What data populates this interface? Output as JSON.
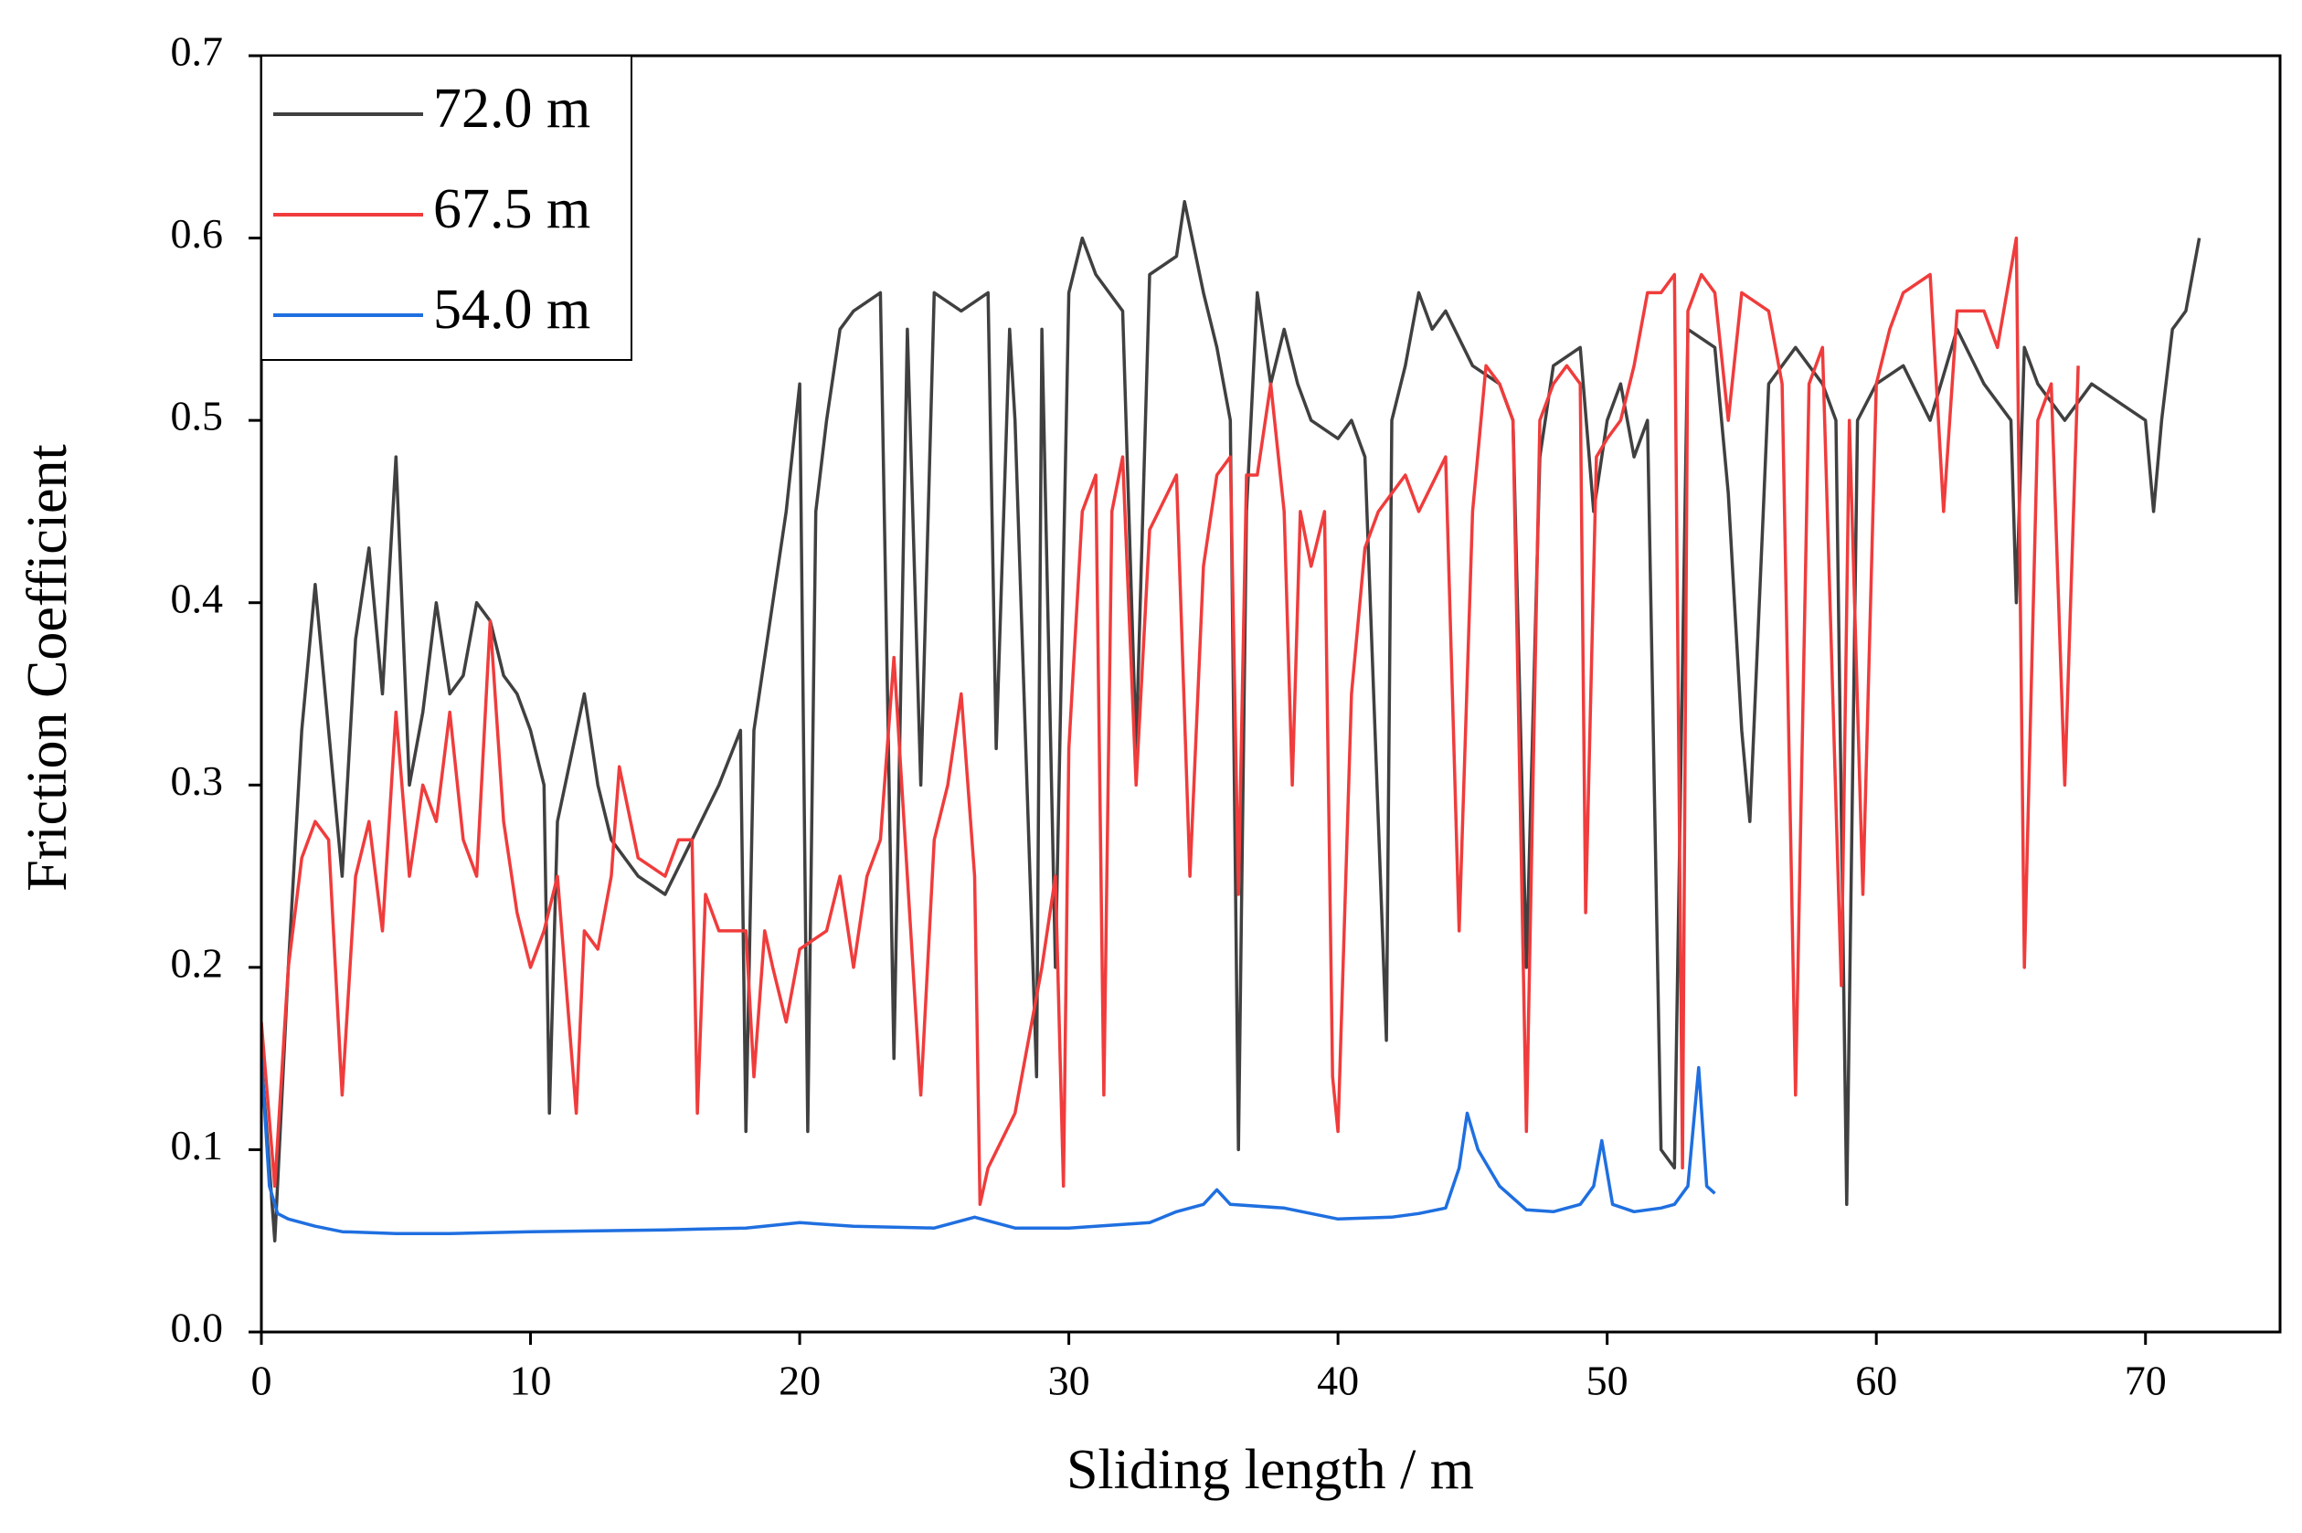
{
  "chart_data": {
    "type": "line",
    "x_label": "Sliding length / m",
    "y_label": "Friction Coefficient",
    "xlim": [
      0,
      75
    ],
    "ylim": [
      0,
      0.7
    ],
    "xticks": [
      0,
      10,
      20,
      30,
      40,
      50,
      60,
      70
    ],
    "yticks": [
      {
        "value": 0,
        "label": "0.0"
      },
      0.1,
      0.2,
      0.3,
      0.4,
      0.5,
      0.6,
      0.7
    ],
    "legend": "upper-left",
    "series": [
      {
        "name": "72.0 m",
        "color": "#404040",
        "x": [
          0,
          0.5,
          1,
          1.5,
          2,
          2.5,
          3,
          3.5,
          4,
          4.5,
          5,
          5.5,
          6,
          6.5,
          7,
          7.5,
          8,
          8.5,
          9,
          9.5,
          10,
          10.5,
          10.7,
          11,
          12,
          12.5,
          13,
          14,
          15,
          16,
          17,
          17.8,
          18,
          18.3,
          19,
          19.5,
          20,
          20.3,
          20.6,
          21,
          21.5,
          22,
          23,
          23.5,
          24,
          24.5,
          25,
          26,
          27,
          27.3,
          27.8,
          28,
          28.8,
          29,
          29.5,
          30,
          30.5,
          31,
          32,
          32.5,
          33,
          34,
          34.3,
          35,
          35.5,
          36,
          36.3,
          36.6,
          37,
          37.5,
          38,
          38.5,
          39,
          40,
          40.5,
          41,
          41.8,
          42,
          42.5,
          43,
          43.5,
          44,
          45,
          46,
          46.5,
          47,
          47.5,
          48,
          49,
          49.5,
          50,
          50.5,
          51,
          51.5,
          52,
          52.5,
          53,
          54,
          54.5,
          55,
          55.3,
          55.8,
          56,
          57,
          58,
          58.5,
          58.9,
          59.3,
          60,
          61,
          62,
          63,
          64,
          65,
          65.2,
          65.5,
          66,
          67,
          68,
          69,
          70,
          70.3,
          70.6,
          71,
          71.5,
          72
        ],
        "values": [
          0.15,
          0.05,
          0.2,
          0.33,
          0.41,
          0.33,
          0.25,
          0.38,
          0.43,
          0.35,
          0.48,
          0.3,
          0.34,
          0.4,
          0.35,
          0.36,
          0.4,
          0.39,
          0.36,
          0.35,
          0.33,
          0.3,
          0.12,
          0.28,
          0.35,
          0.3,
          0.27,
          0.25,
          0.24,
          0.27,
          0.3,
          0.33,
          0.11,
          0.33,
          0.4,
          0.45,
          0.52,
          0.11,
          0.45,
          0.5,
          0.55,
          0.56,
          0.57,
          0.15,
          0.55,
          0.3,
          0.57,
          0.56,
          0.57,
          0.32,
          0.55,
          0.5,
          0.14,
          0.55,
          0.2,
          0.57,
          0.6,
          0.58,
          0.56,
          0.32,
          0.58,
          0.59,
          0.62,
          0.57,
          0.54,
          0.5,
          0.1,
          0.45,
          0.57,
          0.52,
          0.55,
          0.52,
          0.5,
          0.49,
          0.5,
          0.48,
          0.16,
          0.5,
          0.53,
          0.57,
          0.55,
          0.56,
          0.53,
          0.52,
          0.5,
          0.2,
          0.48,
          0.53,
          0.54,
          0.45,
          0.5,
          0.52,
          0.48,
          0.5,
          0.1,
          0.09,
          0.55,
          0.54,
          0.46,
          0.33,
          0.28,
          0.45,
          0.52,
          0.54,
          0.52,
          0.5,
          0.07,
          0.5,
          0.52,
          0.53,
          0.5,
          0.55,
          0.52,
          0.5,
          0.4,
          0.54,
          0.52,
          0.5,
          0.52,
          0.51,
          0.5,
          0.45,
          0.5,
          0.55,
          0.56,
          0.6
        ]
      },
      {
        "name": "67.5 m",
        "color": "#f03c3c",
        "x": [
          0,
          0.5,
          1,
          1.5,
          2,
          2.5,
          3,
          3.5,
          4,
          4.5,
          5,
          5.5,
          6,
          6.5,
          7,
          7.5,
          8,
          8.5,
          9,
          9.5,
          10,
          10.5,
          11,
          11.7,
          12,
          12.5,
          13,
          13.3,
          14,
          15,
          15.5,
          16,
          16.2,
          16.5,
          17,
          18,
          18.3,
          18.7,
          19,
          19.5,
          20,
          21,
          21.5,
          22,
          22.5,
          23,
          23.5,
          24,
          24.5,
          25,
          25.5,
          26,
          26.5,
          26.7,
          27,
          28,
          29,
          29.5,
          29.8,
          30,
          30.5,
          31,
          31.3,
          31.6,
          32,
          32.5,
          33,
          34,
          34.5,
          35,
          35.5,
          36,
          36.3,
          36.6,
          37,
          37.5,
          38,
          38.3,
          38.6,
          39,
          39.5,
          39.8,
          40,
          40.5,
          41,
          41.5,
          42,
          42.5,
          43,
          44,
          44.5,
          45,
          45.5,
          46,
          46.5,
          47,
          47.5,
          48,
          48.5,
          49,
          49.2,
          49.6,
          50,
          50.5,
          51,
          51.5,
          52,
          52.5,
          52.8,
          53,
          53.5,
          54,
          54.5,
          55,
          56,
          56.5,
          57,
          57.5,
          58,
          58.7,
          59,
          59.5,
          60,
          60.5,
          61,
          62,
          62.5,
          63,
          64,
          64.5,
          65.2,
          65.5,
          66,
          66.5,
          67,
          67.5
        ],
        "values": [
          0.17,
          0.08,
          0.2,
          0.26,
          0.28,
          0.27,
          0.13,
          0.25,
          0.28,
          0.22,
          0.34,
          0.25,
          0.3,
          0.28,
          0.34,
          0.27,
          0.25,
          0.39,
          0.28,
          0.23,
          0.2,
          0.22,
          0.25,
          0.12,
          0.22,
          0.21,
          0.25,
          0.31,
          0.26,
          0.25,
          0.27,
          0.27,
          0.12,
          0.24,
          0.22,
          0.22,
          0.14,
          0.22,
          0.2,
          0.17,
          0.21,
          0.22,
          0.25,
          0.2,
          0.25,
          0.27,
          0.37,
          0.25,
          0.13,
          0.27,
          0.3,
          0.35,
          0.25,
          0.07,
          0.09,
          0.12,
          0.2,
          0.25,
          0.08,
          0.32,
          0.45,
          0.47,
          0.13,
          0.45,
          0.48,
          0.3,
          0.44,
          0.47,
          0.25,
          0.42,
          0.47,
          0.48,
          0.24,
          0.47,
          0.47,
          0.52,
          0.45,
          0.3,
          0.45,
          0.42,
          0.45,
          0.14,
          0.11,
          0.35,
          0.43,
          0.45,
          0.46,
          0.47,
          0.45,
          0.48,
          0.22,
          0.45,
          0.53,
          0.52,
          0.5,
          0.11,
          0.5,
          0.52,
          0.53,
          0.52,
          0.23,
          0.48,
          0.49,
          0.5,
          0.53,
          0.57,
          0.57,
          0.58,
          0.09,
          0.56,
          0.58,
          0.57,
          0.5,
          0.57,
          0.56,
          0.52,
          0.13,
          0.52,
          0.54,
          0.19,
          0.5,
          0.24,
          0.52,
          0.55,
          0.57,
          0.58,
          0.45,
          0.56,
          0.56,
          0.54,
          0.6,
          0.2,
          0.5,
          0.52,
          0.3,
          0.53
        ]
      },
      {
        "name": "54.0 m",
        "color": "#1f6fe0",
        "x": [
          0,
          0.3,
          0.6,
          1,
          2,
          3,
          5,
          7,
          10,
          15,
          18,
          20,
          22,
          25,
          26.5,
          28,
          30,
          33,
          34,
          35,
          35.5,
          36,
          38,
          40,
          42,
          43,
          44,
          44.5,
          44.8,
          45.2,
          46,
          47,
          48,
          49,
          49.5,
          49.8,
          50.2,
          51,
          52,
          52.5,
          53,
          53.4,
          53.7,
          54
        ],
        "values": [
          0.15,
          0.08,
          0.065,
          0.062,
          0.058,
          0.055,
          0.054,
          0.054,
          0.055,
          0.056,
          0.057,
          0.06,
          0.058,
          0.057,
          0.063,
          0.057,
          0.057,
          0.06,
          0.066,
          0.07,
          0.078,
          0.07,
          0.068,
          0.062,
          0.063,
          0.065,
          0.068,
          0.09,
          0.12,
          0.1,
          0.08,
          0.067,
          0.066,
          0.07,
          0.08,
          0.105,
          0.07,
          0.066,
          0.068,
          0.07,
          0.08,
          0.145,
          0.08,
          0.076
        ]
      }
    ]
  }
}
